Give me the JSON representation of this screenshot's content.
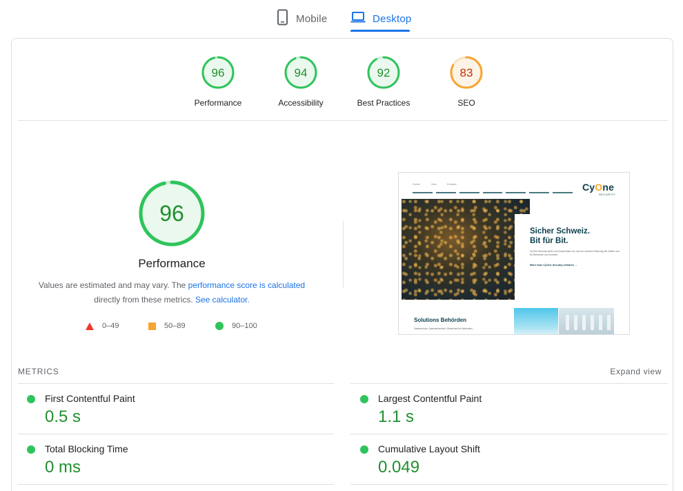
{
  "tabs": {
    "mobile": "Mobile",
    "desktop": "Desktop",
    "active": "desktop"
  },
  "categories": [
    {
      "label": "Performance",
      "score": "96",
      "status": "pass"
    },
    {
      "label": "Accessibility",
      "score": "94",
      "status": "pass"
    },
    {
      "label": "Best Practices",
      "score": "92",
      "status": "pass"
    },
    {
      "label": "SEO",
      "score": "83",
      "status": "average"
    }
  ],
  "performance": {
    "score": "96",
    "title": "Performance",
    "desc_prefix": "Values are estimated and may vary. The ",
    "desc_link1": "performance score is calculated",
    "desc_middle": " directly from these metrics. ",
    "desc_link2": "See calculator.",
    "legend": {
      "fail": "0–49",
      "average": "50–89",
      "pass": "90–100"
    }
  },
  "preview": {
    "top_links": "Suche Jobs Kontakt",
    "logo_before": "Cy",
    "logo_o": "O",
    "logo_after": "ne",
    "logo_sub": "SECURITY",
    "headline_1": "Sicher Schweiz.",
    "headline_2": "Bit für Bit.",
    "body": "CyOne Security steht zum Ausschluss von und zur sicheren Nutzung der Daten und für Behörden und Kunden.",
    "link": "Mehr über CyOne Security erfahren →",
    "section_title": "Solutions Behörden",
    "section_text": "Datenschutz, Datensicherheit, Sicherheit für Behörden..."
  },
  "metrics": {
    "heading": "METRICS",
    "expand": "Expand view",
    "items": [
      {
        "name": "First Contentful Paint",
        "value": "0.5 s",
        "status": "pass"
      },
      {
        "name": "Largest Contentful Paint",
        "value": "1.1 s",
        "status": "pass"
      },
      {
        "name": "Total Blocking Time",
        "value": "0 ms",
        "status": "pass"
      },
      {
        "name": "Cumulative Layout Shift",
        "value": "0.049",
        "status": "pass"
      }
    ]
  },
  "colors": {
    "pass": "#0cce6b",
    "pass_text": "#218f2e",
    "average": "#f6a532",
    "average_text": "#c33300",
    "fail": "#eb3b2e",
    "accent": "#1a73e8"
  }
}
